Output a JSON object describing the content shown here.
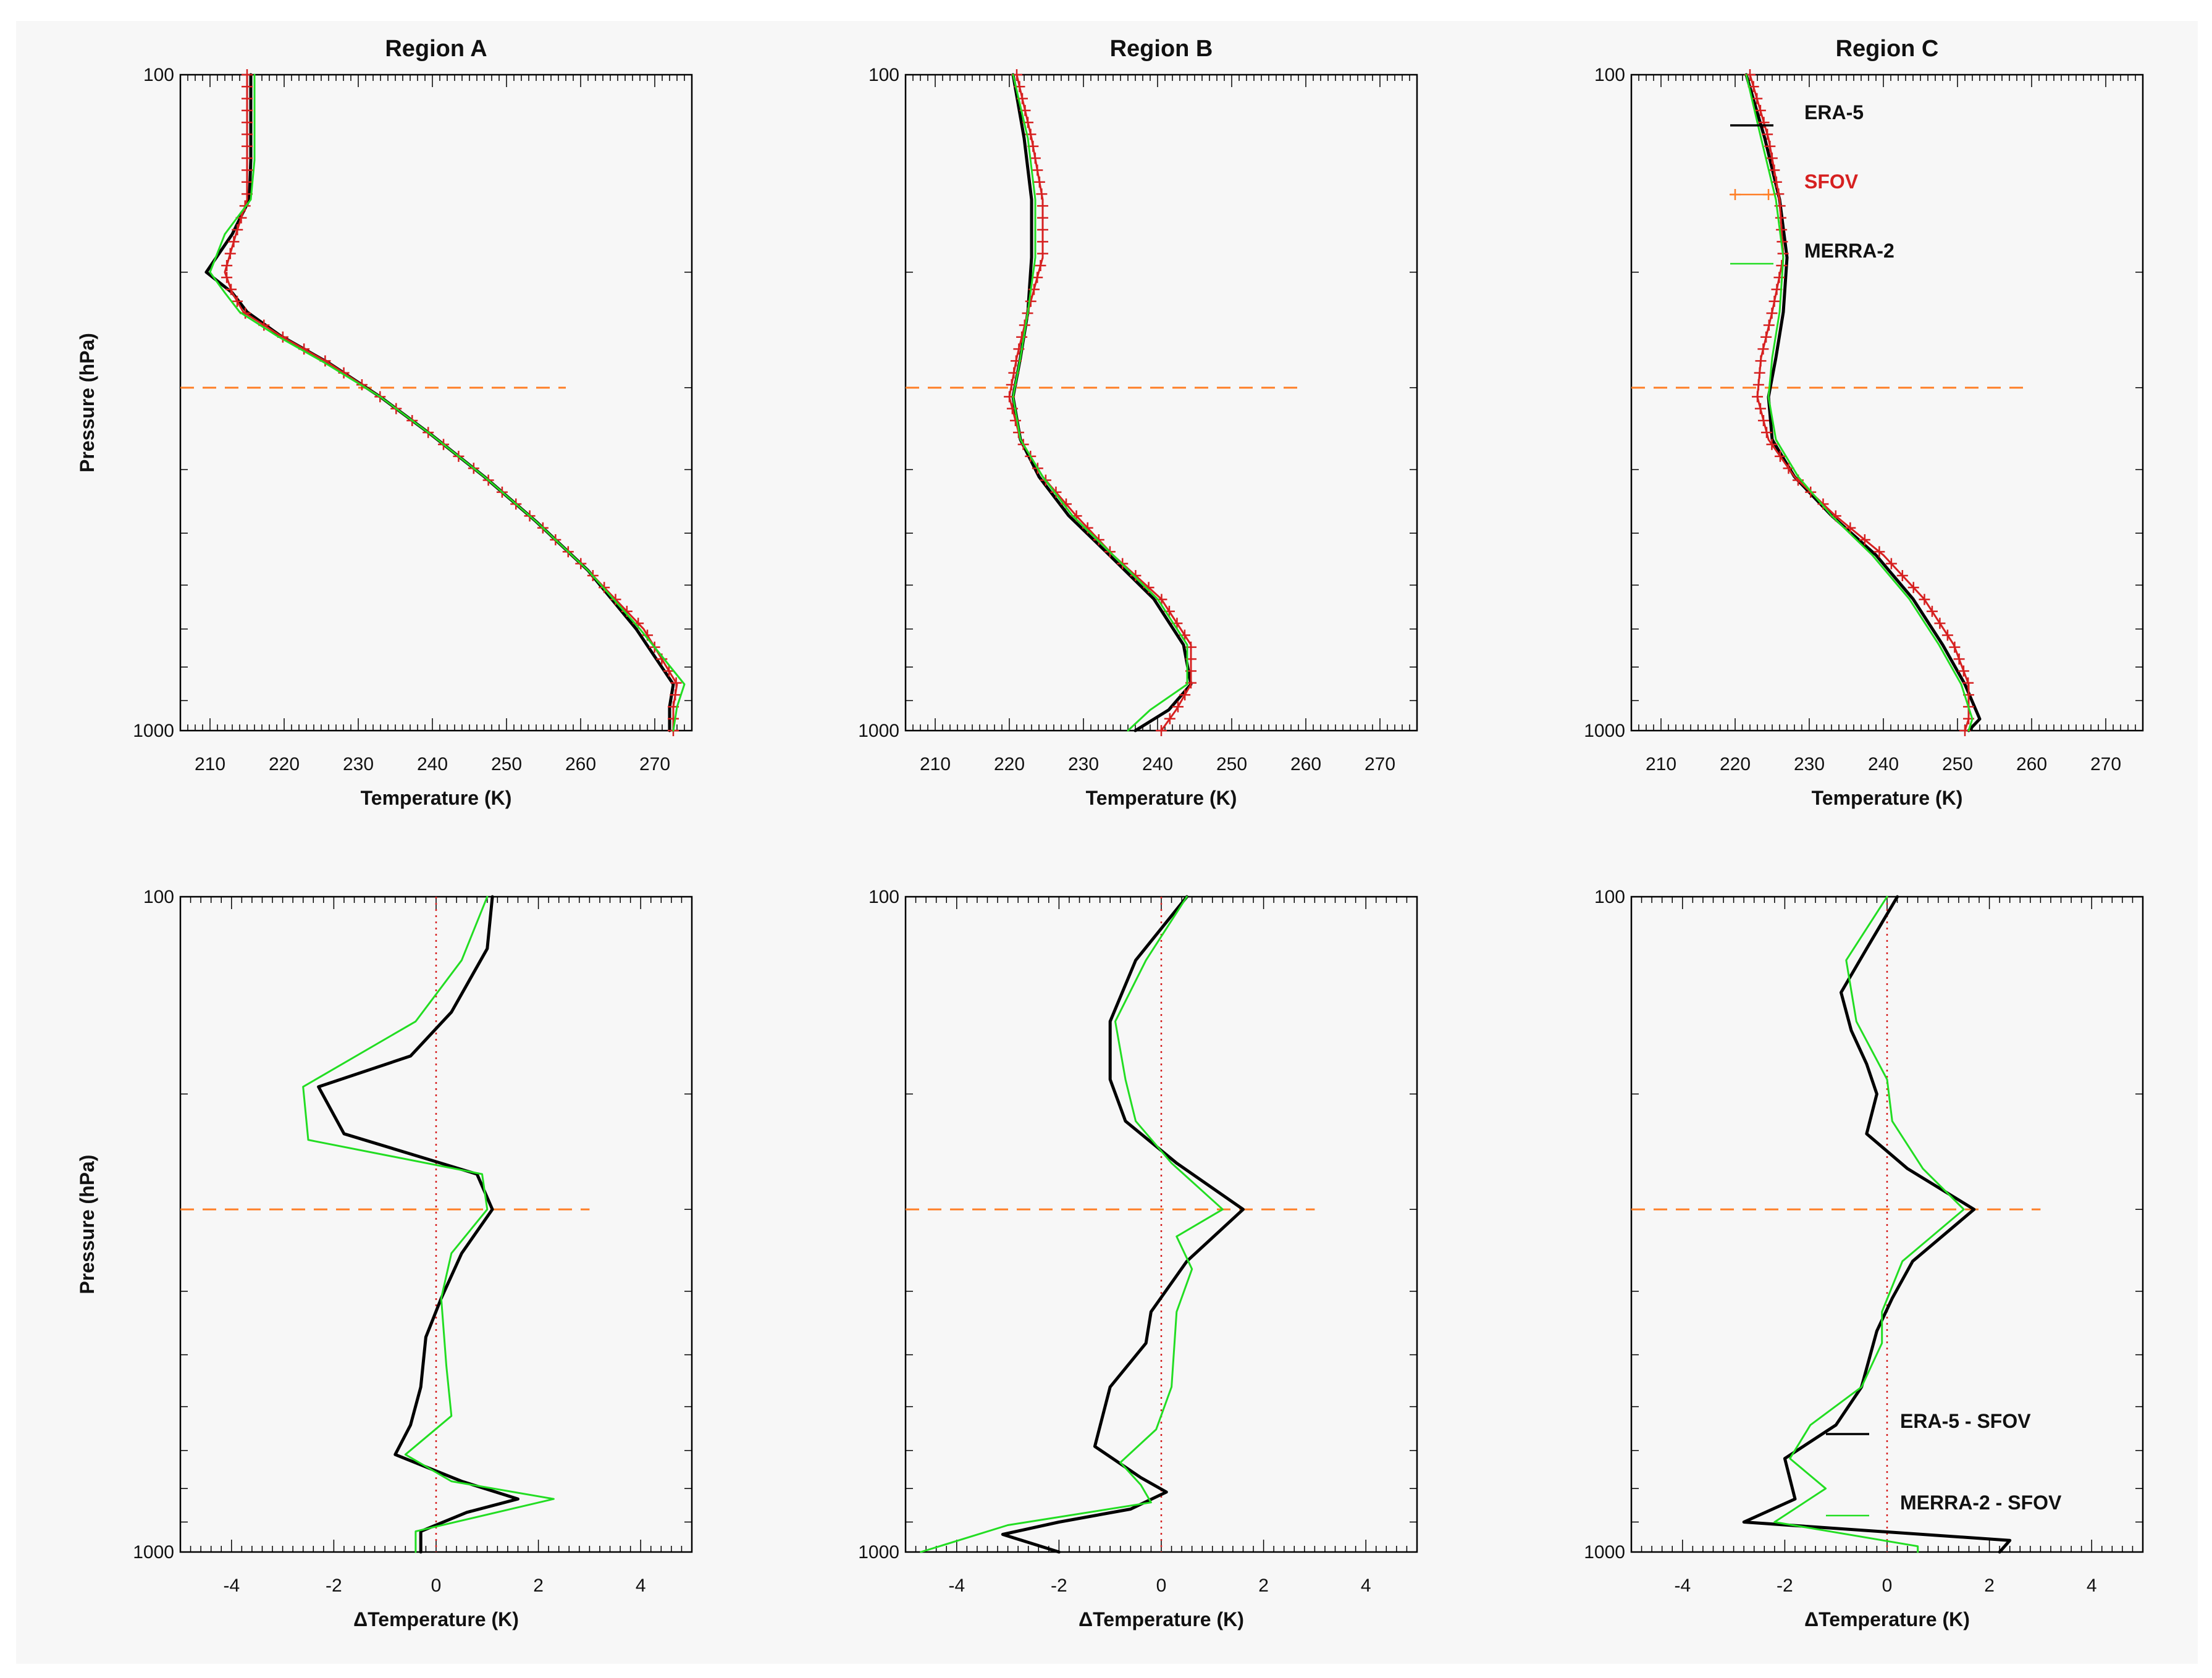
{
  "figure": {
    "background": "#f7f7f7",
    "colors": {
      "era5": "#000000",
      "sfov": "#d62020",
      "sfov_line": "#ff7f27",
      "merra2": "#22dd22",
      "ref": "#ff7f27",
      "zero": "#d62020"
    }
  },
  "chart_data": [
    {
      "type": "line",
      "panel": "temperature",
      "title": "Region A",
      "xlabel": "Temperature (K)",
      "ylabel": "Pressure (hPa)",
      "xlim": [
        206,
        275
      ],
      "xticks": [
        210,
        220,
        230,
        240,
        250,
        260,
        270
      ],
      "yscale": "log",
      "ylim": [
        100,
        1000
      ],
      "yticks": [
        100,
        1000
      ],
      "ref_pressure": 300,
      "ref_x": [
        206,
        258
      ],
      "series": [
        {
          "name": "ERA-5",
          "color": "#000000",
          "x": [
            215.5,
            215.5,
            215.5,
            215.3,
            213,
            209.5,
            213,
            215,
            219.5,
            226,
            233,
            240,
            247,
            254,
            261,
            267.5,
            272.5,
            272,
            272
          ],
          "p": [
            100,
            118,
            135,
            155,
            175,
            200,
            215,
            230,
            250,
            275,
            310,
            355,
            410,
            480,
            570,
            700,
            850,
            920,
            1000
          ]
        },
        {
          "name": "SFOV",
          "color": "#d62020",
          "x": [
            215,
            215,
            215,
            215,
            213.5,
            212,
            213,
            214.5,
            219.5,
            226,
            233,
            240,
            247,
            254,
            261,
            268.5,
            273,
            272.5,
            272.5
          ],
          "p": [
            100,
            118,
            135,
            155,
            175,
            200,
            215,
            230,
            250,
            275,
            310,
            355,
            410,
            480,
            570,
            700,
            850,
            920,
            1000
          ]
        },
        {
          "name": "MERRA-2",
          "color": "#22dd22",
          "x": [
            216,
            216,
            216,
            215.5,
            212,
            210,
            212,
            214,
            219,
            225.5,
            233,
            240,
            247,
            254,
            261,
            268,
            274,
            273,
            272.5
          ],
          "p": [
            100,
            118,
            135,
            155,
            175,
            200,
            215,
            230,
            250,
            275,
            310,
            355,
            410,
            480,
            570,
            700,
            850,
            920,
            1000
          ]
        }
      ]
    },
    {
      "type": "line",
      "panel": "temperature",
      "title": "Region B",
      "xlabel": "Temperature (K)",
      "ylabel": "",
      "xlim": [
        206,
        275
      ],
      "xticks": [
        210,
        220,
        230,
        240,
        250,
        260,
        270
      ],
      "yscale": "log",
      "ylim": [
        100,
        1000
      ],
      "yticks": [
        100,
        1000
      ],
      "ref_pressure": 300,
      "ref_x": [
        206,
        259
      ],
      "series": [
        {
          "name": "ERA-5",
          "color": "#000000",
          "x": [
            220.5,
            222,
            223,
            223,
            222.5,
            221.5,
            220.5,
            221.5,
            224,
            228,
            233.5,
            239.5,
            243.5,
            244.5,
            241.5,
            237
          ],
          "p": [
            100,
            125,
            155,
            190,
            230,
            270,
            310,
            360,
            410,
            470,
            540,
            630,
            740,
            850,
            930,
            1000
          ]
        },
        {
          "name": "SFOV",
          "color": "#d62020",
          "x": [
            221,
            223,
            224.5,
            224.5,
            222.5,
            221,
            220,
            221.5,
            224.5,
            229,
            234,
            240.5,
            244.5,
            244.5,
            242.5,
            240.5
          ],
          "p": [
            100,
            125,
            155,
            190,
            230,
            270,
            310,
            360,
            410,
            470,
            540,
            630,
            740,
            850,
            930,
            1000
          ]
        },
        {
          "name": "MERRA-2",
          "color": "#22dd22",
          "x": [
            220.5,
            222.5,
            223.5,
            223.5,
            222.5,
            221.5,
            220.5,
            221.5,
            224.5,
            228.5,
            234,
            240,
            244,
            244,
            239,
            236
          ],
          "p": [
            100,
            125,
            155,
            190,
            230,
            270,
            310,
            360,
            410,
            470,
            540,
            630,
            740,
            850,
            930,
            1000
          ]
        }
      ]
    },
    {
      "type": "line",
      "panel": "temperature",
      "title": "Region C",
      "xlabel": "Temperature (K)",
      "ylabel": "",
      "xlim": [
        206,
        275
      ],
      "xticks": [
        210,
        220,
        230,
        240,
        250,
        260,
        270
      ],
      "yscale": "log",
      "ylim": [
        100,
        1000
      ],
      "yticks": [
        100,
        1000
      ],
      "ref_pressure": 300,
      "ref_x": [
        206,
        259
      ],
      "legend": [
        "ERA-5",
        "SFOV",
        "MERRA-2"
      ],
      "series": [
        {
          "name": "ERA-5",
          "color": "#000000",
          "x": [
            221.5,
            224,
            226,
            227,
            226.5,
            225.5,
            224.5,
            225,
            228,
            233,
            239,
            244,
            248,
            251,
            253,
            251.5
          ],
          "p": [
            100,
            125,
            155,
            190,
            230,
            270,
            310,
            360,
            410,
            470,
            540,
            630,
            740,
            850,
            960,
            1000
          ]
        },
        {
          "name": "SFOV",
          "color": "#d62020",
          "x": [
            222,
            224.5,
            226,
            226.5,
            225,
            223.5,
            223,
            224.5,
            228,
            233.5,
            240,
            245.5,
            249.5,
            251.5,
            251.5,
            251
          ],
          "p": [
            100,
            125,
            155,
            190,
            230,
            270,
            310,
            360,
            410,
            470,
            540,
            630,
            740,
            850,
            960,
            1000
          ]
        },
        {
          "name": "MERRA-2",
          "color": "#22dd22",
          "x": [
            221.5,
            223.5,
            225.5,
            226.5,
            226,
            225,
            224.5,
            225.5,
            228.5,
            233,
            238.5,
            243.5,
            247.5,
            250.5,
            252,
            251.5
          ],
          "p": [
            100,
            125,
            155,
            190,
            230,
            270,
            310,
            360,
            410,
            470,
            540,
            630,
            740,
            850,
            960,
            1000
          ]
        }
      ]
    },
    {
      "type": "line",
      "panel": "difference",
      "title": "",
      "xlabel": "ΔTemperature (K)",
      "ylabel": "Pressure (hPa)",
      "xlim": [
        -5,
        5
      ],
      "xticks": [
        -4,
        -2,
        0,
        2,
        4
      ],
      "yscale": "log",
      "ylim": [
        100,
        1000
      ],
      "yticks": [
        100,
        1000
      ],
      "ref_pressure": 300,
      "ref_x": [
        -5,
        3
      ],
      "series": [
        {
          "name": "ERA-5 - SFOV",
          "color": "#000000",
          "x": [
            1.1,
            1.0,
            0.3,
            -0.5,
            -2.3,
            -1.8,
            0.8,
            1.1,
            0.5,
            0.1,
            -0.2,
            -0.3,
            -0.5,
            -0.8,
            0.5,
            1.6,
            0.6,
            -0.3,
            -0.3
          ],
          "p": [
            100,
            120,
            150,
            175,
            195,
            230,
            265,
            300,
            350,
            410,
            470,
            560,
            640,
            710,
            780,
            830,
            870,
            930,
            1000
          ]
        },
        {
          "name": "MERRA-2 - SFOV",
          "color": "#22dd22",
          "x": [
            1.0,
            0.5,
            -0.4,
            -2.6,
            -2.5,
            0.9,
            1.0,
            0.3,
            0.1,
            0.2,
            0.3,
            -0.6,
            0.3,
            2.3,
            -0.4,
            -0.4
          ],
          "p": [
            100,
            125,
            155,
            195,
            235,
            265,
            300,
            350,
            410,
            520,
            620,
            710,
            780,
            830,
            930,
            1000
          ]
        }
      ]
    },
    {
      "type": "line",
      "panel": "difference",
      "title": "",
      "xlabel": "ΔTemperature (K)",
      "ylabel": "",
      "xlim": [
        -5,
        5
      ],
      "xticks": [
        -4,
        -2,
        0,
        2,
        4
      ],
      "yscale": "log",
      "ylim": [
        100,
        1000
      ],
      "yticks": [
        100,
        1000
      ],
      "ref_pressure": 300,
      "ref_x": [
        -5,
        3
      ],
      "series": [
        {
          "name": "ERA-5 - SFOV",
          "color": "#000000",
          "x": [
            0.5,
            -0.5,
            -1.0,
            -1.0,
            -0.7,
            0.3,
            1.6,
            0.5,
            -0.2,
            -0.3,
            -1.0,
            -1.3,
            -0.4,
            0.1,
            -0.6,
            -2.0,
            -3.1,
            -2.0
          ],
          "p": [
            100,
            125,
            155,
            190,
            220,
            255,
            300,
            360,
            430,
            480,
            560,
            690,
            770,
            810,
            860,
            900,
            940,
            1000
          ]
        },
        {
          "name": "MERRA-2 - SFOV",
          "color": "#22dd22",
          "x": [
            0.5,
            -0.3,
            -0.9,
            -0.7,
            -0.5,
            0.2,
            1.2,
            0.3,
            0.6,
            0.3,
            0.2,
            -0.1,
            -0.8,
            -0.4,
            -0.2,
            -3.0,
            -4.7
          ],
          "p": [
            100,
            125,
            155,
            190,
            220,
            255,
            300,
            330,
            370,
            430,
            560,
            650,
            730,
            790,
            840,
            910,
            1000
          ]
        }
      ]
    },
    {
      "type": "line",
      "panel": "difference",
      "title": "",
      "xlabel": "ΔTemperature (K)",
      "ylabel": "",
      "xlim": [
        -5,
        5
      ],
      "xticks": [
        -4,
        -2,
        0,
        2,
        4
      ],
      "yscale": "log",
      "ylim": [
        100,
        1000
      ],
      "yticks": [
        100,
        1000
      ],
      "ref_pressure": 300,
      "ref_x": [
        -5,
        3
      ],
      "legend": [
        "ERA-5 - SFOV",
        "MERRA-2 - SFOV"
      ],
      "series": [
        {
          "name": "ERA-5 - SFOV",
          "color": "#000000",
          "x": [
            0.2,
            -0.4,
            -0.9,
            -0.7,
            -0.4,
            -0.2,
            -0.4,
            0.4,
            1.7,
            0.5,
            0.1,
            -0.2,
            -0.5,
            -1.0,
            -2.0,
            -1.8,
            -2.8,
            2.4,
            2.2
          ],
          "p": [
            100,
            120,
            140,
            160,
            180,
            200,
            230,
            260,
            300,
            360,
            410,
            460,
            560,
            640,
            720,
            830,
            900,
            960,
            1000
          ]
        },
        {
          "name": "MERRA-2 - SFOV",
          "color": "#22dd22",
          "x": [
            0.0,
            -0.8,
            -0.6,
            0.0,
            0.1,
            0.7,
            1.5,
            0.3,
            -0.1,
            -0.1,
            -0.5,
            -1.5,
            -1.9,
            -1.2,
            -2.2,
            0.6,
            0.6
          ],
          "p": [
            100,
            125,
            155,
            190,
            220,
            260,
            300,
            360,
            430,
            480,
            560,
            640,
            720,
            800,
            900,
            980,
            1000
          ]
        }
      ]
    }
  ],
  "ui": {
    "tick_label_100": "100",
    "tick_label_1000": "1000"
  }
}
